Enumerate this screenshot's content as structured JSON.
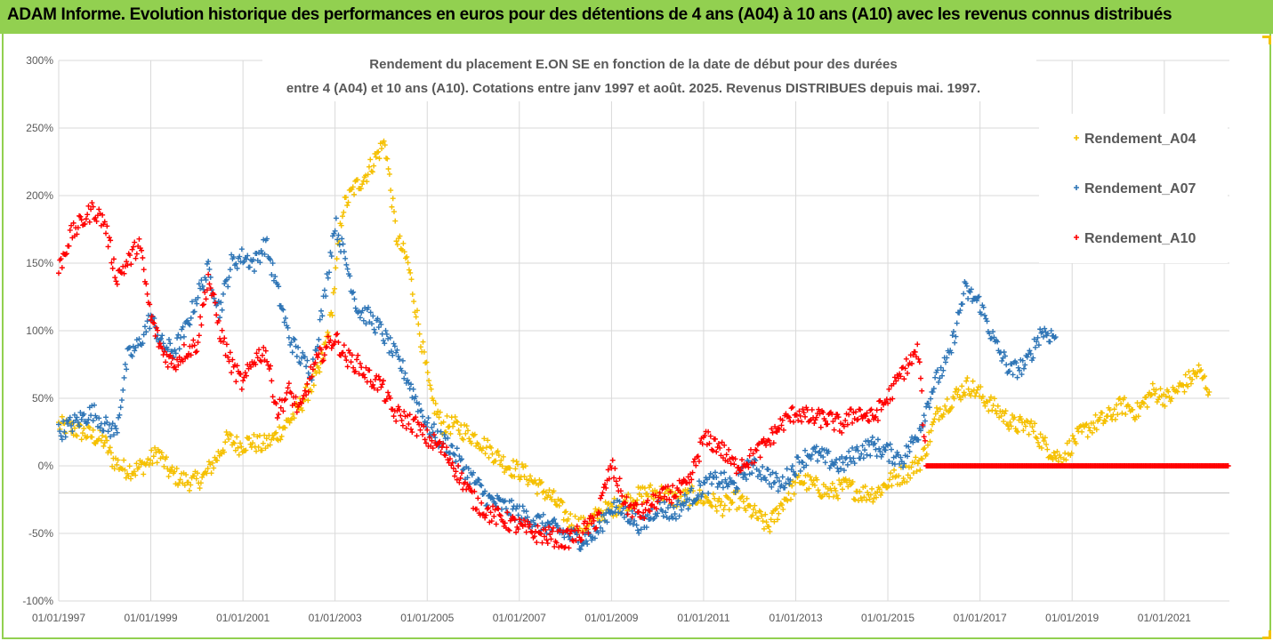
{
  "header": {
    "title": "ADAM Informe. Evolution historique des performances en euros pour des détentions de 4 ans (A04) à 10 ans (A10) avec les revenus connus distribués",
    "background_color": "#92d050"
  },
  "chart_data": {
    "type": "scatter",
    "title_lines": [
      "Rendement du placement E.ON SE en fonction de la date de début pour des durées",
      "entre 4 (A04) et 10 ans (A10). Cotations entre janv 1997 et août. 2025. Revenus DISTRIBUES depuis mai. 1997."
    ],
    "xlabel": "",
    "ylabel": "",
    "x_tick_labels": [
      "01/01/1997",
      "01/01/1999",
      "01/01/2001",
      "01/01/2003",
      "01/01/2005",
      "01/01/2007",
      "01/01/2009",
      "01/01/2011",
      "01/01/2013",
      "01/01/2015",
      "01/01/2017",
      "01/01/2019",
      "01/01/2021"
    ],
    "xlim": [
      "1997-01-01",
      "2022-06-01"
    ],
    "y_tick_labels": [
      "300%",
      "250%",
      "200%",
      "150%",
      "100%",
      "50%",
      "0%",
      "-50%",
      "-100%"
    ],
    "ylim": [
      -100,
      300
    ],
    "y_unit": "%",
    "grid": true,
    "legend_position": "top-right",
    "series": [
      {
        "name": "Rendement_A04",
        "color": "#f5c000",
        "marker": "+",
        "points": [
          [
            "1997-01-01",
            30
          ],
          [
            "1997-04-01",
            28
          ],
          [
            "1997-07-01",
            25
          ],
          [
            "1997-10-01",
            22
          ],
          [
            "1998-01-01",
            18
          ],
          [
            "1998-03-01",
            5
          ],
          [
            "1998-06-01",
            -2
          ],
          [
            "1998-09-01",
            -3
          ],
          [
            "1998-12-01",
            2
          ],
          [
            "1999-03-01",
            10
          ],
          [
            "1999-06-01",
            -5
          ],
          [
            "1999-09-01",
            -10
          ],
          [
            "1999-12-01",
            -12
          ],
          [
            "2000-03-01",
            -8
          ],
          [
            "2000-06-01",
            5
          ],
          [
            "2000-09-01",
            20
          ],
          [
            "2000-12-01",
            15
          ],
          [
            "2001-03-01",
            18
          ],
          [
            "2001-06-01",
            15
          ],
          [
            "2001-09-01",
            20
          ],
          [
            "2001-12-01",
            30
          ],
          [
            "2002-03-01",
            40
          ],
          [
            "2002-06-01",
            55
          ],
          [
            "2002-09-01",
            70
          ],
          [
            "2002-12-01",
            110
          ],
          [
            "2003-03-01",
            190
          ],
          [
            "2003-06-01",
            205
          ],
          [
            "2003-09-01",
            215
          ],
          [
            "2003-12-01",
            230
          ],
          [
            "2004-02-01",
            240
          ],
          [
            "2004-05-01",
            170
          ],
          [
            "2004-08-01",
            150
          ],
          [
            "2004-11-01",
            100
          ],
          [
            "2005-02-01",
            50
          ],
          [
            "2005-05-01",
            30
          ],
          [
            "2005-08-01",
            30
          ],
          [
            "2005-11-01",
            25
          ],
          [
            "2006-02-01",
            20
          ],
          [
            "2006-06-01",
            10
          ],
          [
            "2006-10-01",
            0
          ],
          [
            "2007-02-01",
            -5
          ],
          [
            "2007-06-01",
            -15
          ],
          [
            "2007-10-01",
            -25
          ],
          [
            "2008-02-01",
            -40
          ],
          [
            "2008-06-01",
            -45
          ],
          [
            "2008-10-01",
            -35
          ],
          [
            "2009-02-01",
            -30
          ],
          [
            "2009-06-01",
            -25
          ],
          [
            "2009-10-01",
            -20
          ],
          [
            "2010-02-01",
            -20
          ],
          [
            "2010-06-01",
            -25
          ],
          [
            "2010-10-01",
            -22
          ],
          [
            "2011-02-01",
            -25
          ],
          [
            "2011-06-01",
            -30
          ],
          [
            "2011-10-01",
            -25
          ],
          [
            "2012-02-01",
            -35
          ],
          [
            "2012-06-01",
            -45
          ],
          [
            "2012-10-01",
            -25
          ],
          [
            "2013-02-01",
            -10
          ],
          [
            "2013-06-01",
            -15
          ],
          [
            "2013-10-01",
            -20
          ],
          [
            "2014-02-01",
            -15
          ],
          [
            "2014-06-01",
            -20
          ],
          [
            "2014-10-01",
            -20
          ],
          [
            "2015-02-01",
            -10
          ],
          [
            "2015-06-01",
            -5
          ],
          [
            "2015-10-01",
            5
          ],
          [
            "2016-02-01",
            40
          ],
          [
            "2016-06-01",
            50
          ],
          [
            "2016-10-01",
            60
          ],
          [
            "2017-02-01",
            50
          ],
          [
            "2017-06-01",
            40
          ],
          [
            "2017-10-01",
            30
          ],
          [
            "2018-02-01",
            30
          ],
          [
            "2018-06-01",
            15
          ],
          [
            "2018-10-01",
            5
          ],
          [
            "2019-02-01",
            20
          ],
          [
            "2019-06-01",
            30
          ],
          [
            "2019-10-01",
            35
          ],
          [
            "2020-02-01",
            45
          ],
          [
            "2020-06-01",
            40
          ],
          [
            "2020-10-01",
            55
          ],
          [
            "2021-02-01",
            50
          ],
          [
            "2021-06-01",
            60
          ],
          [
            "2021-10-01",
            70
          ],
          [
            "2022-01-01",
            55
          ]
        ]
      },
      {
        "name": "Rendement_A07",
        "color": "#2e75b6",
        "marker": "+",
        "points": [
          [
            "1997-01-01",
            25
          ],
          [
            "1997-04-01",
            30
          ],
          [
            "1997-07-01",
            35
          ],
          [
            "1997-10-01",
            40
          ],
          [
            "1998-01-01",
            30
          ],
          [
            "1998-04-01",
            25
          ],
          [
            "1998-07-01",
            80
          ],
          [
            "1998-10-01",
            90
          ],
          [
            "1999-01-01",
            110
          ],
          [
            "1999-04-01",
            90
          ],
          [
            "1999-07-01",
            85
          ],
          [
            "1999-10-01",
            100
          ],
          [
            "2000-01-01",
            125
          ],
          [
            "2000-04-01",
            145
          ],
          [
            "2000-07-01",
            115
          ],
          [
            "2000-10-01",
            150
          ],
          [
            "2001-01-01",
            155
          ],
          [
            "2001-04-01",
            150
          ],
          [
            "2001-07-01",
            165
          ],
          [
            "2001-10-01",
            130
          ],
          [
            "2002-01-01",
            95
          ],
          [
            "2002-04-01",
            80
          ],
          [
            "2002-07-01",
            70
          ],
          [
            "2002-10-01",
            120
          ],
          [
            "2003-01-01",
            180
          ],
          [
            "2003-04-01",
            150
          ],
          [
            "2003-07-01",
            115
          ],
          [
            "2003-10-01",
            110
          ],
          [
            "2004-01-01",
            100
          ],
          [
            "2004-04-01",
            85
          ],
          [
            "2004-07-01",
            70
          ],
          [
            "2004-10-01",
            50
          ],
          [
            "2005-01-01",
            30
          ],
          [
            "2005-04-01",
            20
          ],
          [
            "2005-07-01",
            15
          ],
          [
            "2005-10-01",
            0
          ],
          [
            "2006-01-01",
            -10
          ],
          [
            "2006-05-01",
            -25
          ],
          [
            "2006-09-01",
            -30
          ],
          [
            "2007-01-01",
            -35
          ],
          [
            "2007-05-01",
            -40
          ],
          [
            "2007-09-01",
            -45
          ],
          [
            "2008-01-01",
            -50
          ],
          [
            "2008-05-01",
            -55
          ],
          [
            "2008-09-01",
            -50
          ],
          [
            "2009-01-01",
            -30
          ],
          [
            "2009-05-01",
            -35
          ],
          [
            "2009-09-01",
            -45
          ],
          [
            "2010-01-01",
            -30
          ],
          [
            "2010-05-01",
            -35
          ],
          [
            "2010-09-01",
            -25
          ],
          [
            "2011-01-01",
            -15
          ],
          [
            "2011-05-01",
            -10
          ],
          [
            "2011-09-01",
            -15
          ],
          [
            "2012-01-01",
            0
          ],
          [
            "2012-05-01",
            -5
          ],
          [
            "2012-09-01",
            -15
          ],
          [
            "2013-01-01",
            0
          ],
          [
            "2013-05-01",
            10
          ],
          [
            "2013-09-01",
            5
          ],
          [
            "2014-01-01",
            0
          ],
          [
            "2014-05-01",
            10
          ],
          [
            "2014-09-01",
            15
          ],
          [
            "2015-01-01",
            10
          ],
          [
            "2015-05-01",
            5
          ],
          [
            "2015-09-01",
            25
          ],
          [
            "2016-01-01",
            60
          ],
          [
            "2016-05-01",
            80
          ],
          [
            "2016-09-01",
            130
          ],
          [
            "2017-01-01",
            120
          ],
          [
            "2017-05-01",
            90
          ],
          [
            "2017-09-01",
            70
          ],
          [
            "2018-01-01",
            75
          ],
          [
            "2018-05-01",
            100
          ],
          [
            "2018-09-01",
            95
          ]
        ]
      },
      {
        "name": "Rendement_A10",
        "color": "#ff0000",
        "marker": "+",
        "points": [
          [
            "1997-01-01",
            145
          ],
          [
            "1997-04-01",
            170
          ],
          [
            "1997-07-01",
            180
          ],
          [
            "1997-10-01",
            190
          ],
          [
            "1998-01-01",
            180
          ],
          [
            "1998-04-01",
            140
          ],
          [
            "1998-07-01",
            150
          ],
          [
            "1998-10-01",
            165
          ],
          [
            "1999-01-01",
            110
          ],
          [
            "1999-04-01",
            85
          ],
          [
            "1999-07-01",
            75
          ],
          [
            "1999-10-01",
            85
          ],
          [
            "2000-01-01",
            90
          ],
          [
            "2000-04-01",
            140
          ],
          [
            "2000-07-01",
            100
          ],
          [
            "2000-10-01",
            75
          ],
          [
            "2001-01-01",
            60
          ],
          [
            "2001-04-01",
            80
          ],
          [
            "2001-07-01",
            85
          ],
          [
            "2001-10-01",
            40
          ],
          [
            "2002-01-01",
            55
          ],
          [
            "2002-04-01",
            40
          ],
          [
            "2002-07-01",
            70
          ],
          [
            "2002-10-01",
            85
          ],
          [
            "2003-01-01",
            95
          ],
          [
            "2003-04-01",
            80
          ],
          [
            "2003-07-01",
            75
          ],
          [
            "2003-10-01",
            65
          ],
          [
            "2004-01-01",
            60
          ],
          [
            "2004-04-01",
            40
          ],
          [
            "2004-07-01",
            35
          ],
          [
            "2004-10-01",
            30
          ],
          [
            "2005-01-01",
            20
          ],
          [
            "2005-04-01",
            15
          ],
          [
            "2005-07-01",
            5
          ],
          [
            "2005-10-01",
            -10
          ],
          [
            "2006-01-01",
            -25
          ],
          [
            "2006-05-01",
            -35
          ],
          [
            "2006-09-01",
            -40
          ],
          [
            "2007-01-01",
            -45
          ],
          [
            "2007-05-01",
            -50
          ],
          [
            "2007-09-01",
            -52
          ],
          [
            "2008-01-01",
            -55
          ],
          [
            "2008-05-01",
            -50
          ],
          [
            "2008-09-01",
            -40
          ],
          [
            "2009-01-01",
            0
          ],
          [
            "2009-05-01",
            -30
          ],
          [
            "2009-09-01",
            -35
          ],
          [
            "2010-01-01",
            -25
          ],
          [
            "2010-05-01",
            -20
          ],
          [
            "2010-09-01",
            -15
          ],
          [
            "2011-01-01",
            20
          ],
          [
            "2011-05-01",
            15
          ],
          [
            "2011-09-01",
            0
          ],
          [
            "2012-01-01",
            5
          ],
          [
            "2012-05-01",
            15
          ],
          [
            "2012-09-01",
            30
          ],
          [
            "2013-01-01",
            40
          ],
          [
            "2013-05-01",
            35
          ],
          [
            "2013-09-01",
            35
          ],
          [
            "2014-01-01",
            30
          ],
          [
            "2014-05-01",
            40
          ],
          [
            "2014-09-01",
            35
          ],
          [
            "2015-01-01",
            50
          ],
          [
            "2015-05-01",
            70
          ],
          [
            "2015-09-01",
            85
          ],
          [
            "2015-11-01",
            0
          ],
          [
            "2016-06-01",
            0
          ],
          [
            "2017-06-01",
            0
          ],
          [
            "2018-06-01",
            0
          ],
          [
            "2019-06-01",
            0
          ],
          [
            "2020-06-01",
            0
          ],
          [
            "2021-06-01",
            0
          ],
          [
            "2022-06-01",
            0
          ]
        ]
      }
    ]
  }
}
